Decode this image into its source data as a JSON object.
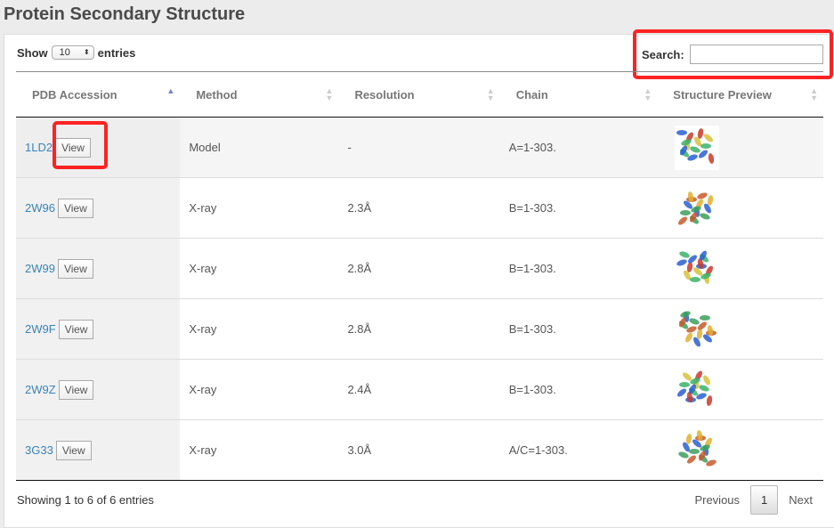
{
  "title": "Protein Secondary Structure",
  "length": {
    "show": "Show",
    "value": "10",
    "entries": "entries"
  },
  "search": {
    "label": "Search:",
    "value": ""
  },
  "columns": [
    "PDB Accession",
    "Method",
    "Resolution",
    "Chain",
    "Structure Preview"
  ],
  "sort": {
    "column": "PDB Accession",
    "direction": "ascending"
  },
  "rows": [
    {
      "pdb": "1LD2",
      "view": "View",
      "method": "Model",
      "resolution": "-",
      "chain": "A=1-303."
    },
    {
      "pdb": "2W96",
      "view": "View",
      "method": "X-ray",
      "resolution": "2.3Å",
      "chain": "B=1-303."
    },
    {
      "pdb": "2W99",
      "view": "View",
      "method": "X-ray",
      "resolution": "2.8Å",
      "chain": "B=1-303."
    },
    {
      "pdb": "2W9F",
      "view": "View",
      "method": "X-ray",
      "resolution": "2.8Å",
      "chain": "B=1-303."
    },
    {
      "pdb": "2W9Z",
      "view": "View",
      "method": "X-ray",
      "resolution": "2.4Å",
      "chain": "B=1-303."
    },
    {
      "pdb": "3G33",
      "view": "View",
      "method": "X-ray",
      "resolution": "3.0Å",
      "chain": "A/C=1-303."
    }
  ],
  "footer": {
    "info": "Showing 1 to 6 of 6 entries",
    "previous": "Previous",
    "page": "1",
    "next": "Next"
  },
  "colors": {
    "link": "#3a83b8",
    "highlight": "#ff2222"
  }
}
